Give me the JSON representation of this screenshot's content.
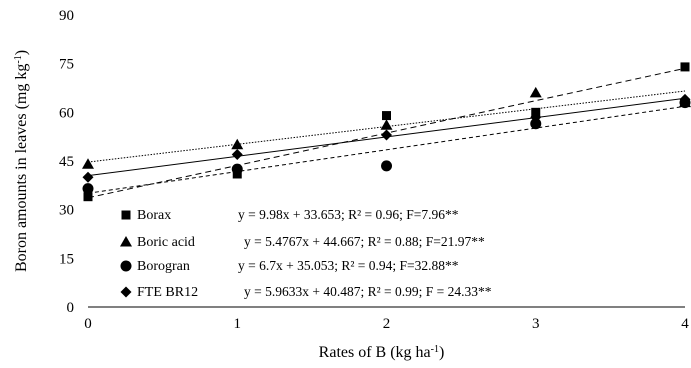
{
  "chart_data": {
    "type": "scatter",
    "xlabel": "Rates of B (kg ha",
    "xlabel_sup": "-1",
    "xlabel_end": ")",
    "ylabel": "Boron amounts in leaves (mg kg",
    "ylabel_sup": "-1",
    "ylabel_end": ")",
    "xlim": [
      0,
      4
    ],
    "ylim": [
      0,
      90
    ],
    "x_ticks": [
      0,
      1,
      2,
      3,
      4
    ],
    "y_ticks": [
      0,
      15,
      30,
      45,
      60,
      75,
      90
    ],
    "x_tick_labels": [
      "0",
      "1",
      "2",
      "3",
      "4"
    ],
    "y_tick_labels": [
      "0",
      "15",
      "30",
      "45",
      "60",
      "75",
      "90"
    ],
    "grid": false,
    "legend_position": "bottom-left inside",
    "series": [
      {
        "name": "Borax",
        "marker": "square",
        "x": [
          0,
          1,
          2,
          3,
          4
        ],
        "y": [
          34,
          41,
          59,
          60,
          74
        ],
        "trend": {
          "slope": 9.98,
          "intercept": 33.653,
          "style": "long-dash"
        },
        "equation": "y = 9.98x + 33.653; R² = 0.96; F=7.96**"
      },
      {
        "name": "Boric acid",
        "marker": "triangle",
        "x": [
          0,
          1,
          2,
          3,
          4
        ],
        "y": [
          44,
          50,
          56,
          66,
          63
        ],
        "trend": {
          "slope": 5.4767,
          "intercept": 44.667,
          "style": "dotted"
        },
        "equation": "y = 5.4767x + 44.667; R² = 0.88; F=21.97**"
      },
      {
        "name": "Borogran",
        "marker": "circle",
        "x": [
          0,
          1,
          2,
          3,
          4
        ],
        "y": [
          36.5,
          42.5,
          43.5,
          56.5,
          63
        ],
        "trend": {
          "slope": 6.7,
          "intercept": 35.053,
          "style": "short-dash"
        },
        "equation": "y = 6.7x + 35.053; R² = 0.94; F=32.88**"
      },
      {
        "name": "FTE BR12",
        "marker": "diamond",
        "x": [
          0,
          1,
          2,
          3,
          4
        ],
        "y": [
          40,
          47,
          53,
          58.5,
          64
        ],
        "trend": {
          "slope": 5.9633,
          "intercept": 40.487,
          "style": "solid"
        },
        "equation": "y = 5.9633x + 40.487; R² = 0.99; F = 24.33**"
      }
    ]
  }
}
